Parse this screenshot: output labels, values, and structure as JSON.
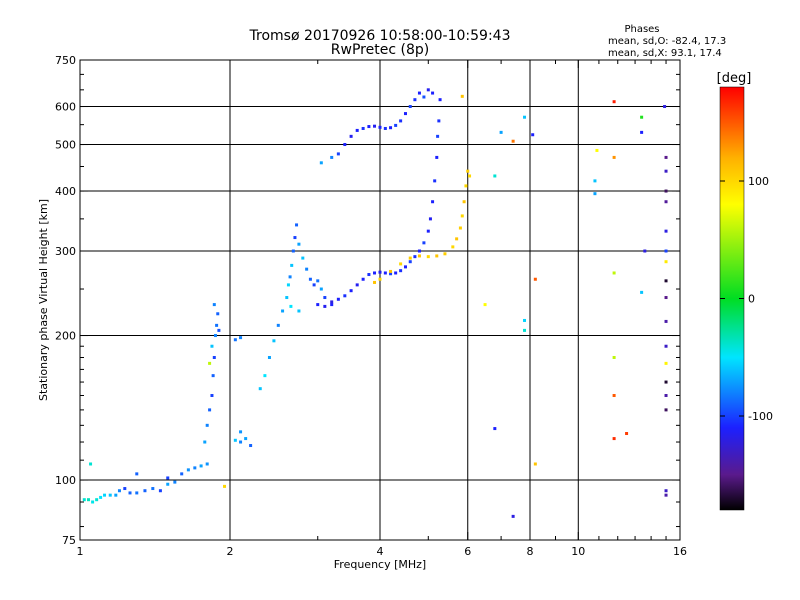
{
  "chart_data": {
    "type": "scatter",
    "title": "Tromsø 20170926 10:58:00-10:59:43",
    "subtitle": "RwPretec (8p)",
    "phase_box": {
      "heading": "Phases",
      "line_o": "mean, sd,O: -82.4, 17.3",
      "line_x": "mean, sd,X:  93.1, 17.4"
    },
    "xlabel": "Frequency [MHz]",
    "ylabel": "Stationary phase Virtual Height [km]",
    "x_scale": "log",
    "y_scale": "log",
    "xlim": [
      1,
      16
    ],
    "ylim": [
      75,
      750
    ],
    "x_ticks": [
      {
        "value": 1,
        "label": "1"
      },
      {
        "value": 2,
        "label": "2"
      },
      {
        "value": 4,
        "label": "4"
      },
      {
        "value": 6,
        "label": "6"
      },
      {
        "value": 8,
        "label": "8"
      },
      {
        "value": 10,
        "label": "10"
      },
      {
        "value": 16,
        "label": "16"
      }
    ],
    "x_gridlines": [
      2,
      4,
      6,
      8,
      10
    ],
    "y_ticks": [
      {
        "value": 75,
        "label": "75"
      },
      {
        "value": 100,
        "label": "100"
      },
      {
        "value": 200,
        "label": "200"
      },
      {
        "value": 300,
        "label": "300"
      },
      {
        "value": 400,
        "label": "400"
      },
      {
        "value": 500,
        "label": "500"
      },
      {
        "value": 600,
        "label": "600"
      },
      {
        "value": 750,
        "label": "750"
      }
    ],
    "y_gridlines": [
      100,
      200,
      300,
      400,
      500,
      600
    ],
    "colorbar": {
      "label": "[deg]",
      "range": [
        -180,
        180
      ],
      "ticks": [
        {
          "value": 100,
          "label": "100"
        },
        {
          "value": 0,
          "label": "0"
        },
        {
          "value": -100,
          "label": "-100"
        }
      ],
      "stops": [
        {
          "value": -180,
          "color": "#000000"
        },
        {
          "value": -150,
          "color": "#5a1a8c"
        },
        {
          "value": -110,
          "color": "#1c20ff"
        },
        {
          "value": -50,
          "color": "#00e5ff"
        },
        {
          "value": 0,
          "color": "#00dd22"
        },
        {
          "value": 80,
          "color": "#ffff00"
        },
        {
          "value": 120,
          "color": "#ffb000"
        },
        {
          "value": 180,
          "color": "#ff0000"
        }
      ]
    },
    "series": [
      {
        "name": "E-region base",
        "points": [
          [
            1.02,
            91,
            -40
          ],
          [
            1.04,
            91,
            -35
          ],
          [
            1.06,
            90,
            -45
          ],
          [
            1.08,
            91,
            -40
          ],
          [
            1.1,
            92,
            -50
          ],
          [
            1.12,
            93,
            -55
          ],
          [
            1.15,
            93,
            -60
          ],
          [
            1.18,
            93,
            -70
          ],
          [
            1.2,
            95,
            -80
          ],
          [
            1.23,
            96,
            -100
          ],
          [
            1.26,
            94,
            -90
          ],
          [
            1.3,
            94,
            -85
          ],
          [
            1.35,
            95,
            -90
          ],
          [
            1.4,
            96,
            -85
          ],
          [
            1.45,
            95,
            -100
          ],
          [
            1.5,
            98,
            -70
          ],
          [
            1.55,
            99,
            -80
          ],
          [
            1.6,
            103,
            -90
          ],
          [
            1.65,
            105,
            -75
          ],
          [
            1.7,
            106,
            -80
          ],
          [
            1.75,
            107,
            -70
          ],
          [
            1.8,
            108,
            -75
          ],
          [
            1.05,
            108,
            -40
          ],
          [
            1.3,
            103,
            -90
          ],
          [
            1.5,
            101,
            -100
          ]
        ]
      },
      {
        "name": "Es / E rise near 2 MHz",
        "points": [
          [
            1.8,
            130,
            -80
          ],
          [
            1.82,
            140,
            -90
          ],
          [
            1.84,
            150,
            -100
          ],
          [
            1.85,
            165,
            -90
          ],
          [
            1.86,
            180,
            -100
          ],
          [
            1.87,
            200,
            -80
          ],
          [
            1.88,
            210,
            -85
          ],
          [
            1.89,
            222,
            -90
          ],
          [
            1.9,
            205,
            -95
          ],
          [
            1.86,
            232,
            -80
          ],
          [
            1.84,
            190,
            -60
          ],
          [
            1.78,
            120,
            -70
          ],
          [
            1.82,
            175,
            60
          ],
          [
            2.05,
            121,
            -60
          ],
          [
            2.1,
            120,
            -80
          ],
          [
            2.15,
            122,
            -70
          ],
          [
            2.2,
            118,
            -90
          ],
          [
            2.1,
            126,
            -75
          ],
          [
            2.05,
            196,
            -85
          ],
          [
            2.1,
            198,
            -80
          ],
          [
            1.95,
            97,
            100
          ]
        ]
      },
      {
        "name": "F1 cusp",
        "points": [
          [
            2.3,
            155,
            -60
          ],
          [
            2.35,
            165,
            -50
          ],
          [
            2.4,
            180,
            -70
          ],
          [
            2.45,
            195,
            -60
          ],
          [
            2.5,
            210,
            -80
          ],
          [
            2.55,
            225,
            -70
          ],
          [
            2.6,
            240,
            -60
          ],
          [
            2.62,
            255,
            -55
          ],
          [
            2.64,
            265,
            -80
          ],
          [
            2.66,
            280,
            -60
          ],
          [
            2.68,
            300,
            -90
          ],
          [
            2.7,
            320,
            -100
          ],
          [
            2.72,
            340,
            -90
          ],
          [
            2.75,
            310,
            -70
          ],
          [
            2.8,
            290,
            -60
          ],
          [
            2.85,
            275,
            -80
          ],
          [
            2.9,
            262,
            -90
          ],
          [
            2.95,
            255,
            -100
          ],
          [
            3.0,
            260,
            -85
          ],
          [
            3.05,
            250,
            -70
          ],
          [
            3.1,
            240,
            -100
          ],
          [
            3.2,
            232,
            -110
          ],
          [
            2.65,
            230,
            -50
          ],
          [
            2.75,
            225,
            -60
          ]
        ]
      },
      {
        "name": "F-region O trace",
        "points": [
          [
            3.0,
            232,
            -110
          ],
          [
            3.1,
            230,
            -115
          ],
          [
            3.2,
            235,
            -120
          ],
          [
            3.3,
            238,
            -110
          ],
          [
            3.4,
            242,
            -105
          ],
          [
            3.5,
            248,
            -110
          ],
          [
            3.6,
            255,
            -115
          ],
          [
            3.7,
            262,
            -110
          ],
          [
            3.8,
            268,
            -105
          ],
          [
            3.9,
            270,
            -110
          ],
          [
            4.0,
            271,
            -115
          ],
          [
            4.1,
            270,
            -110
          ],
          [
            4.2,
            269,
            -100
          ],
          [
            4.3,
            270,
            -110
          ],
          [
            4.4,
            273,
            -105
          ],
          [
            4.5,
            278,
            -110
          ],
          [
            4.6,
            285,
            -100
          ],
          [
            4.7,
            292,
            -105
          ],
          [
            4.8,
            300,
            -110
          ],
          [
            4.9,
            312,
            -100
          ],
          [
            5.0,
            330,
            -110
          ],
          [
            5.05,
            350,
            -115
          ],
          [
            5.1,
            380,
            -110
          ],
          [
            5.15,
            420,
            -105
          ],
          [
            5.2,
            470,
            -110
          ],
          [
            5.22,
            520,
            -100
          ],
          [
            5.25,
            560,
            -105
          ],
          [
            5.28,
            620,
            -110
          ]
        ]
      },
      {
        "name": "F-region X trace",
        "points": [
          [
            3.9,
            258,
            110
          ],
          [
            4.0,
            262,
            100
          ],
          [
            4.2,
            272,
            110
          ],
          [
            4.4,
            282,
            100
          ],
          [
            4.6,
            290,
            105
          ],
          [
            4.8,
            293,
            110
          ],
          [
            5.0,
            292,
            100
          ],
          [
            5.2,
            293,
            110
          ],
          [
            5.4,
            296,
            105
          ],
          [
            5.6,
            306,
            100
          ],
          [
            5.7,
            318,
            110
          ],
          [
            5.8,
            335,
            105
          ],
          [
            5.85,
            355,
            100
          ],
          [
            5.9,
            380,
            110
          ],
          [
            5.95,
            410,
            100
          ],
          [
            6.0,
            440,
            105
          ],
          [
            5.85,
            630,
            110
          ],
          [
            6.05,
            430,
            100
          ]
        ]
      },
      {
        "name": "Upper O trace",
        "points": [
          [
            3.05,
            458,
            -70
          ],
          [
            3.2,
            470,
            -80
          ],
          [
            3.3,
            478,
            -100
          ],
          [
            3.4,
            500,
            -110
          ],
          [
            3.5,
            520,
            -115
          ],
          [
            3.6,
            535,
            -110
          ],
          [
            3.7,
            540,
            -105
          ],
          [
            3.8,
            545,
            -110
          ],
          [
            3.9,
            546,
            -115
          ],
          [
            4.0,
            543,
            -110
          ],
          [
            4.1,
            540,
            -105
          ],
          [
            4.2,
            542,
            -110
          ],
          [
            4.3,
            548,
            -100
          ],
          [
            4.4,
            560,
            -105
          ],
          [
            4.5,
            580,
            -110
          ],
          [
            4.6,
            600,
            -100
          ],
          [
            4.7,
            620,
            -105
          ],
          [
            4.8,
            640,
            -110
          ],
          [
            5.0,
            650,
            -115
          ],
          [
            5.1,
            640,
            -110
          ],
          [
            4.9,
            628,
            -95
          ]
        ]
      },
      {
        "name": "Scattered echoes",
        "points": [
          [
            6.5,
            232,
            80
          ],
          [
            6.8,
            128,
            -110
          ],
          [
            6.8,
            430,
            -40
          ],
          [
            7.0,
            530,
            -70
          ],
          [
            7.4,
            508,
            140
          ],
          [
            7.4,
            84,
            -120
          ],
          [
            7.8,
            570,
            -60
          ],
          [
            7.8,
            215,
            -55
          ],
          [
            7.8,
            205,
            -40
          ],
          [
            8.1,
            524,
            -110
          ],
          [
            8.2,
            108,
            110
          ],
          [
            8.2,
            262,
            150
          ],
          [
            10.8,
            420,
            -60
          ],
          [
            10.8,
            395,
            -70
          ],
          [
            10.9,
            486,
            80
          ],
          [
            11.8,
            614,
            170
          ],
          [
            11.8,
            470,
            130
          ],
          [
            11.8,
            270,
            60
          ],
          [
            11.8,
            180,
            60
          ],
          [
            11.8,
            150,
            150
          ],
          [
            11.8,
            122,
            165
          ],
          [
            12.5,
            125,
            160
          ],
          [
            13.4,
            570,
            10
          ],
          [
            13.4,
            530,
            -110
          ],
          [
            13.6,
            300,
            -120
          ],
          [
            13.4,
            246,
            -60
          ],
          [
            14.9,
            600,
            -120
          ],
          [
            15.0,
            470,
            -150
          ],
          [
            15.0,
            440,
            -130
          ],
          [
            15.0,
            400,
            -160
          ],
          [
            15.0,
            380,
            -145
          ],
          [
            15.0,
            330,
            -120
          ],
          [
            15.0,
            300,
            -100
          ],
          [
            15.0,
            285,
            90
          ],
          [
            15.0,
            260,
            -170
          ],
          [
            15.0,
            240,
            -150
          ],
          [
            15.0,
            214,
            -140
          ],
          [
            15.0,
            190,
            -130
          ],
          [
            15.0,
            175,
            85
          ],
          [
            15.0,
            160,
            -170
          ],
          [
            15.0,
            150,
            -140
          ],
          [
            15.0,
            140,
            -160
          ],
          [
            15.0,
            93,
            -140
          ],
          [
            15.0,
            95,
            -130
          ]
        ]
      }
    ]
  }
}
